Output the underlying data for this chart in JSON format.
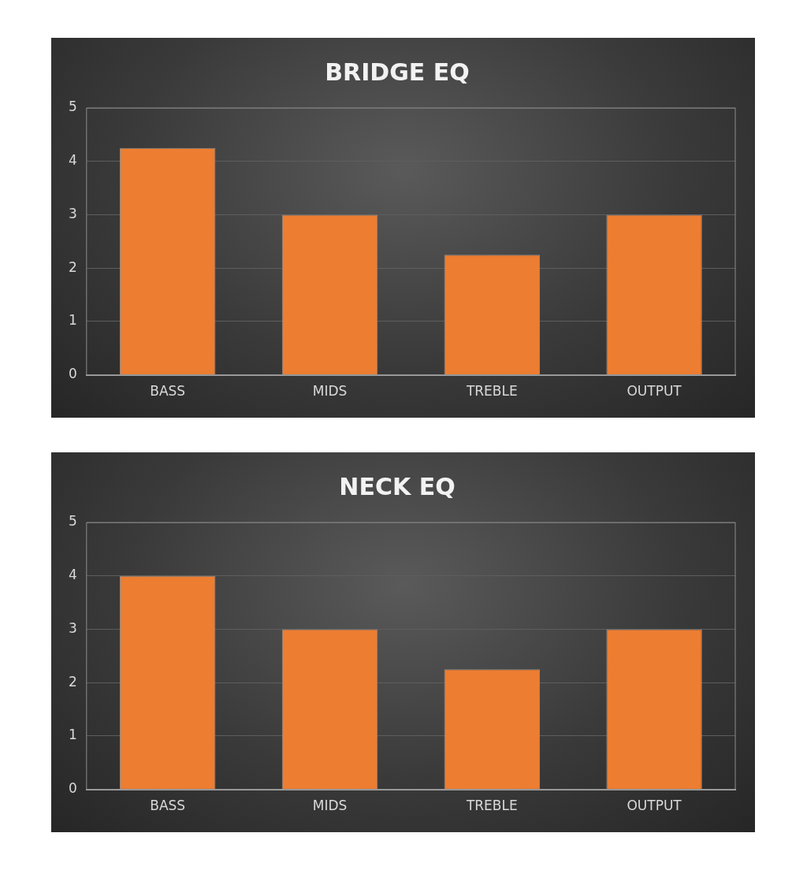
{
  "chart_data": [
    {
      "type": "bar",
      "title": "BRIDGE EQ",
      "categories": [
        "BASS",
        "MIDS",
        "TREBLE",
        "OUTPUT"
      ],
      "values": [
        4.25,
        3,
        2.25,
        3
      ],
      "color": "#ed7d31",
      "ylim": [
        0,
        5
      ],
      "yticks": [
        0,
        1,
        2,
        3,
        4,
        5
      ],
      "grid": "y",
      "legend": false
    },
    {
      "type": "bar",
      "title": "NECK EQ",
      "categories": [
        "BASS",
        "MIDS",
        "TREBLE",
        "OUTPUT"
      ],
      "values": [
        4,
        3,
        2.25,
        3
      ],
      "color": "#ed7d31",
      "ylim": [
        0,
        5
      ],
      "yticks": [
        0,
        1,
        2,
        3,
        4,
        5
      ],
      "grid": "y",
      "legend": false
    }
  ]
}
